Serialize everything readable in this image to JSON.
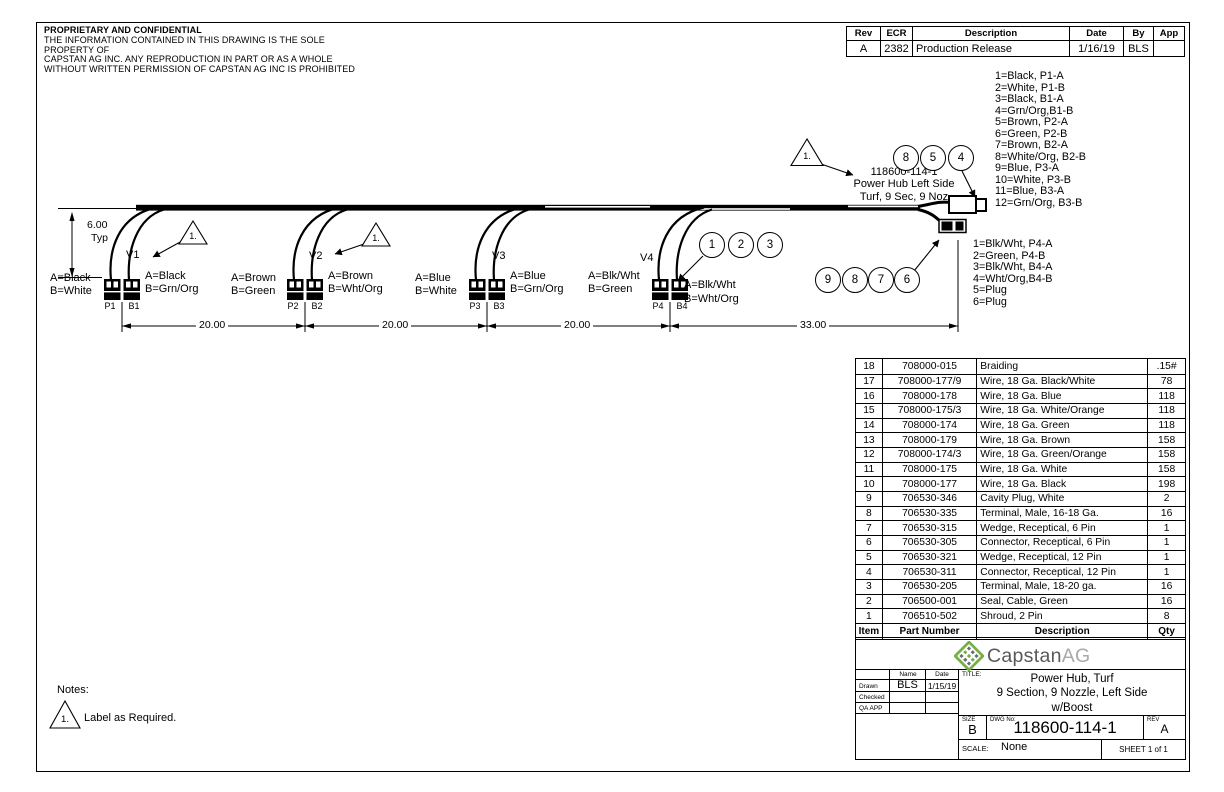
{
  "proprietary": {
    "title": "PROPRIETARY AND CONFIDENTIAL",
    "line1": "THE INFORMATION CONTAINED IN THIS DRAWING IS THE SOLE PROPERTY OF",
    "line2": "CAPSTAN AG INC. ANY REPRODUCTION IN PART OR AS A WHOLE",
    "line3": "WITHOUT WRITTEN PERMISSION OF CAPSTAN AG INC IS PROHIBITED"
  },
  "rev_table": {
    "headers": [
      "Rev",
      "ECR",
      "Description",
      "Date",
      "By",
      "App"
    ],
    "row": {
      "rev": "A",
      "ecr": "2382",
      "description": "Production Release",
      "date": "1/16/19",
      "by": "BLS",
      "app": ""
    }
  },
  "wire_list_top": [
    "1=Black, P1-A",
    "2=White, P1-B",
    "3=Black, B1-A",
    "4=Grn/Org,B1-B",
    "5=Brown, P2-A",
    "6=Green, P2-B",
    "7=Brown, B2-A",
    "8=White/Org, B2-B",
    "9=Blue, P3-A",
    "10=White, P3-B",
    "11=Blue, B3-A",
    "12=Grn/Org, B3-B"
  ],
  "wire_list_bottom": [
    "1=Blk/Wht, P4-A",
    "2=Green, P4-B",
    "3=Blk/Wht, B4-A",
    "4=Wht/Org,B4-B",
    "5=Plug",
    "6=Plug"
  ],
  "hub_label": {
    "line1": "118600-114-1",
    "line2": "Power Hub Left Side",
    "line3": "Turf, 9 Sec, 9 Noz"
  },
  "flag_number": "1.",
  "balloons": {
    "top": [
      "8",
      "5",
      "4"
    ],
    "mid": [
      "1",
      "2",
      "3"
    ],
    "right": [
      "9",
      "8",
      "7",
      "6"
    ]
  },
  "valves": [
    {
      "name": "V1",
      "left_a": "A=Black",
      "left_b": "B=White",
      "right_a": "A=Black",
      "right_b": "B=Grn/Org",
      "p": "P1",
      "b": "B1"
    },
    {
      "name": "V2",
      "left_a": "A=Brown",
      "left_b": "B=Green",
      "right_a": "A=Brown",
      "right_b": "B=Wht/Org",
      "p": "P2",
      "b": "B2"
    },
    {
      "name": "V3",
      "left_a": "A=Blue",
      "left_b": "B=White",
      "right_a": "A=Blue",
      "right_b": "B=Grn/Org",
      "p": "P3",
      "b": "B3"
    },
    {
      "name": "V4",
      "left_a": "A=Blk/Wht",
      "left_b": "B=Green",
      "right_a": "A=Blk/Wht",
      "right_b": "B=Wht/Org",
      "p": "P4",
      "b": "B4"
    }
  ],
  "dimensions": {
    "vertical": "6.00",
    "vertical_note": "Typ",
    "seg1": "20.00",
    "seg2": "20.00",
    "seg3": "20.00",
    "seg4": "33.00"
  },
  "notes": {
    "title": "Notes:",
    "flag": "1.",
    "text": "Label as Required."
  },
  "bom": {
    "headers": [
      "Item",
      "Part Number",
      "Description",
      "Qty"
    ],
    "rows": [
      [
        "18",
        "708000-015",
        "Braiding",
        ".15#"
      ],
      [
        "17",
        "708000-177/9",
        "Wire, 18 Ga. Black/White",
        "78"
      ],
      [
        "16",
        "708000-178",
        "Wire, 18 Ga. Blue",
        "118"
      ],
      [
        "15",
        "708000-175/3",
        "Wire, 18 Ga. White/Orange",
        "118"
      ],
      [
        "14",
        "708000-174",
        "Wire, 18 Ga. Green",
        "118"
      ],
      [
        "13",
        "708000-179",
        "Wire, 18 Ga. Brown",
        "158"
      ],
      [
        "12",
        "708000-174/3",
        "Wire, 18 Ga. Green/Orange",
        "158"
      ],
      [
        "11",
        "708000-175",
        "Wire, 18 Ga. White",
        "158"
      ],
      [
        "10",
        "708000-177",
        "Wire, 18 Ga. Black",
        "198"
      ],
      [
        "9",
        "706530-346",
        "Cavity Plug, White",
        "2"
      ],
      [
        "8",
        "706530-335",
        "Terminal, Male, 16-18 Ga.",
        "16"
      ],
      [
        "7",
        "706530-315",
        "Wedge, Receptical, 6 Pin",
        "1"
      ],
      [
        "6",
        "706530-305",
        "Connector, Receptical, 6 Pin",
        "1"
      ],
      [
        "5",
        "706530-321",
        "Wedge, Receptical, 12 Pin",
        "1"
      ],
      [
        "4",
        "706530-311",
        "Connector, Receptical, 12 Pin",
        "1"
      ],
      [
        "3",
        "706530-205",
        "Terminal, Male, 18-20 ga.",
        "16"
      ],
      [
        "2",
        "706500-001",
        "Seal, Cable, Green",
        "16"
      ],
      [
        "1",
        "706510-502",
        "Shroud, 2 Pin",
        "8"
      ]
    ]
  },
  "title_block": {
    "logo_text_1": "Capstan",
    "logo_text_2": "AG",
    "drawn_label": "Drawn",
    "checked_label": "Checked",
    "qa_label": "QA APP",
    "name_label": "Name",
    "date_label": "Date",
    "drawn_name": "BLS",
    "drawn_date": "1/15/19",
    "title_label": "TITLE:",
    "title_line1": "Power Hub, Turf",
    "title_line2": "9 Section, 9 Nozzle, Left Side",
    "title_line3": "w/Boost",
    "size_label": "SIZE",
    "size": "B",
    "dwg_label": "DWG No:",
    "dwg_no": "118600-114-1",
    "rev_label": "REV",
    "rev": "A",
    "scale_label": "SCALE:",
    "scale": "None",
    "sheet": "SHEET 1 of 1"
  },
  "colors": {
    "line": "#000000",
    "logo_green": "#76b043",
    "logo_dark": "#58595b",
    "logo_light": "#a7a9ac"
  }
}
